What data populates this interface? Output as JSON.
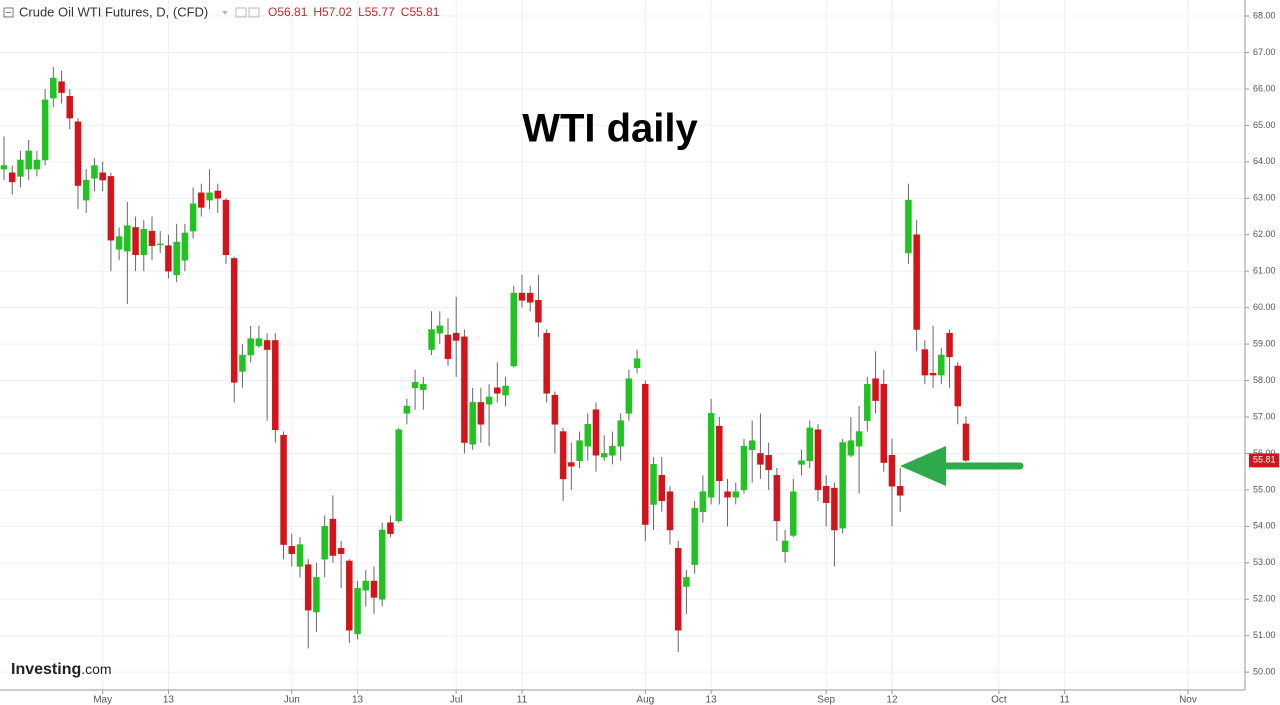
{
  "chart_data": {
    "type": "candlestick",
    "title": "Crude Oil WTI Futures, D, (CFD)",
    "legend": [
      "O56.81",
      "H57.02",
      "L55.77",
      "C55.81"
    ],
    "annotation": "WTI daily",
    "watermark": [
      "Investing",
      ".com"
    ],
    "last_price_label": "55.81",
    "up_color": "#21c321",
    "down_color": "#d4141a",
    "grid": true,
    "categories": [
      null,
      null,
      null,
      null,
      null,
      null,
      null,
      null,
      null,
      null,
      null,
      null,
      "May",
      null,
      null,
      null,
      null,
      null,
      null,
      null,
      "13",
      null,
      null,
      null,
      null,
      null,
      null,
      null,
      null,
      null,
      null,
      null,
      null,
      null,
      null,
      "Jun",
      null,
      null,
      null,
      null,
      null,
      null,
      null,
      "13",
      null,
      null,
      null,
      null,
      null,
      null,
      null,
      null,
      null,
      null,
      null,
      "Jul",
      null,
      null,
      null,
      null,
      null,
      null,
      null,
      "11",
      null,
      null,
      null,
      null,
      null,
      null,
      null,
      null,
      null,
      null,
      null,
      null,
      null,
      null,
      "Aug",
      null,
      null,
      null,
      null,
      null,
      null,
      null,
      "13",
      null,
      null,
      null,
      null,
      null,
      null,
      null,
      null,
      null,
      null,
      null,
      null,
      null,
      "Sep",
      null,
      null,
      null,
      null,
      null,
      null,
      null,
      "12",
      null,
      null,
      null,
      null,
      null,
      null,
      null,
      null,
      null,
      null,
      null,
      null,
      "Oct",
      null,
      null,
      null,
      null,
      null,
      null,
      null,
      "11",
      null,
      null,
      null,
      null,
      null,
      null,
      null,
      null,
      null,
      null,
      null,
      null,
      null,
      null,
      "Nov",
      null,
      null,
      null,
      null
    ],
    "open": [
      63.8,
      63.7,
      63.6,
      63.8,
      63.8,
      64.05,
      65.75,
      66.2,
      65.8,
      65.1,
      62.95,
      63.55,
      63.7,
      63.6,
      61.6,
      61.55,
      62.2,
      61.45,
      62.1,
      61.72,
      61.7,
      60.9,
      61.3,
      62.1,
      63.15,
      62.95,
      63.2,
      62.95,
      61.35,
      58.25,
      58.7,
      58.95,
      59.1,
      59.1,
      56.5,
      53.45,
      52.9,
      52.95,
      51.65,
      53.1,
      54.2,
      53.4,
      53.05,
      51.05,
      52.25,
      52.5,
      52.0,
      54.1,
      54.15,
      57.1,
      57.8,
      57.75,
      58.85,
      59.3,
      59.25,
      59.3,
      59.2,
      56.25,
      57.4,
      57.35,
      57.8,
      57.6,
      58.4,
      60.4,
      60.4,
      60.2,
      59.3,
      57.6,
      56.6,
      55.75,
      55.8,
      56.2,
      57.2,
      55.9,
      55.95,
      56.2,
      57.1,
      58.35,
      57.9,
      54.6,
      55.4,
      54.95,
      53.4,
      52.35,
      52.95,
      54.4,
      54.8,
      56.75,
      54.95,
      54.8,
      55.0,
      56.1,
      56.0,
      55.95,
      55.4,
      53.3,
      53.75,
      55.7,
      55.8,
      56.65,
      55.1,
      55.05,
      53.95,
      55.95,
      56.2,
      56.9,
      58.05,
      57.9,
      55.95,
      55.1,
      61.5,
      62.0,
      58.85,
      58.2,
      58.15,
      59.3,
      58.4,
      56.81,
      null,
      null,
      null,
      null,
      null,
      null,
      null,
      null,
      null,
      null,
      null,
      null,
      null,
      null,
      null,
      null,
      null,
      null,
      null,
      null,
      null,
      null,
      null,
      null,
      null,
      null,
      null,
      null,
      null,
      null,
      null
    ],
    "high": [
      64.7,
      63.9,
      64.3,
      64.6,
      64.3,
      66.0,
      66.6,
      66.5,
      66.0,
      65.2,
      63.8,
      64.1,
      64.0,
      63.7,
      62.2,
      62.9,
      62.5,
      62.4,
      62.5,
      62.1,
      62.0,
      62.3,
      62.3,
      63.3,
      63.4,
      63.8,
      63.4,
      63.0,
      61.4,
      59.0,
      59.5,
      59.5,
      59.3,
      59.3,
      56.6,
      53.8,
      53.7,
      53.1,
      53.0,
      54.3,
      54.85,
      53.6,
      53.1,
      52.5,
      52.8,
      52.9,
      54.1,
      54.3,
      56.7,
      57.5,
      58.3,
      58.1,
      59.9,
      59.9,
      59.7,
      60.3,
      59.4,
      57.8,
      57.8,
      57.9,
      58.5,
      58.1,
      60.6,
      60.9,
      60.6,
      60.9,
      59.4,
      57.7,
      56.7,
      56.3,
      56.6,
      57.1,
      57.4,
      56.5,
      56.6,
      57.1,
      58.3,
      58.85,
      58.0,
      55.9,
      55.9,
      55.1,
      53.6,
      52.8,
      54.7,
      55.4,
      57.5,
      57.0,
      55.3,
      55.2,
      56.4,
      56.9,
      57.1,
      56.3,
      55.6,
      53.9,
      55.3,
      56.1,
      56.9,
      56.8,
      55.4,
      55.2,
      56.4,
      57.0,
      57.3,
      58.1,
      58.8,
      58.3,
      56.4,
      55.6,
      63.4,
      62.4,
      59.1,
      59.5,
      58.9,
      59.4,
      58.5,
      57.02,
      null,
      null,
      null,
      null,
      null,
      null,
      null,
      null,
      null,
      null,
      null,
      null,
      null,
      null,
      null,
      null,
      null,
      null,
      null,
      null,
      null,
      null,
      null,
      null,
      null,
      null,
      null,
      null,
      null,
      null,
      null
    ],
    "low": [
      63.5,
      63.1,
      63.3,
      63.5,
      63.6,
      63.9,
      65.5,
      65.6,
      64.9,
      62.7,
      62.6,
      63.2,
      63.2,
      61.0,
      61.3,
      60.1,
      61.0,
      61.0,
      61.3,
      61.5,
      60.8,
      60.7,
      61.0,
      61.9,
      62.5,
      62.7,
      62.6,
      61.2,
      57.4,
      57.8,
      58.5,
      58.9,
      56.9,
      56.3,
      53.1,
      52.9,
      52.6,
      50.65,
      51.1,
      52.6,
      53.0,
      52.3,
      50.8,
      50.9,
      51.8,
      51.6,
      51.8,
      53.7,
      54.1,
      56.8,
      57.2,
      57.2,
      58.7,
      59.0,
      58.4,
      58.1,
      56.0,
      56.1,
      56.3,
      56.2,
      57.4,
      57.3,
      58.35,
      60.0,
      59.9,
      59.2,
      57.4,
      56.0,
      54.7,
      55.0,
      55.6,
      55.8,
      55.5,
      55.8,
      55.7,
      55.8,
      56.9,
      58.2,
      53.6,
      53.9,
      54.4,
      53.5,
      50.55,
      51.6,
      52.7,
      54.1,
      54.6,
      54.6,
      54.0,
      54.6,
      54.9,
      55.2,
      55.3,
      55.0,
      53.6,
      53.0,
      53.7,
      55.4,
      55.6,
      54.7,
      54.0,
      52.9,
      53.8,
      55.9,
      54.9,
      56.6,
      57.1,
      55.5,
      54.0,
      54.4,
      61.2,
      58.8,
      57.9,
      57.8,
      57.9,
      57.8,
      56.8,
      55.77,
      null,
      null,
      null,
      null,
      null,
      null,
      null,
      null,
      null,
      null,
      null,
      null,
      null,
      null,
      null,
      null,
      null,
      null,
      null,
      null,
      null,
      null,
      null,
      null,
      null,
      null,
      null,
      null,
      null,
      null,
      null
    ],
    "close": [
      63.9,
      63.45,
      64.05,
      64.3,
      64.05,
      65.7,
      66.3,
      65.9,
      65.2,
      63.35,
      63.5,
      63.9,
      63.5,
      61.85,
      61.95,
      62.25,
      61.45,
      62.15,
      61.7,
      61.75,
      61.0,
      61.8,
      62.05,
      62.85,
      62.75,
      63.15,
      63.0,
      61.45,
      57.95,
      58.7,
      59.15,
      59.15,
      58.85,
      56.65,
      53.5,
      53.25,
      53.5,
      51.7,
      52.6,
      54.0,
      53.2,
      53.25,
      51.15,
      52.3,
      52.5,
      52.05,
      53.9,
      53.8,
      56.65,
      57.3,
      57.95,
      57.9,
      59.4,
      59.5,
      58.6,
      59.1,
      56.3,
      57.4,
      56.8,
      57.55,
      57.65,
      57.85,
      60.4,
      60.2,
      60.15,
      59.6,
      57.65,
      56.8,
      55.3,
      55.65,
      56.35,
      56.8,
      55.95,
      56.0,
      56.2,
      56.9,
      58.05,
      58.6,
      54.05,
      55.7,
      54.7,
      53.9,
      51.15,
      52.6,
      54.5,
      54.95,
      57.1,
      55.25,
      54.8,
      54.95,
      56.2,
      56.35,
      55.7,
      55.55,
      54.15,
      53.6,
      54.95,
      55.8,
      56.7,
      55.0,
      54.65,
      53.9,
      56.3,
      56.35,
      56.6,
      57.9,
      57.45,
      55.75,
      55.1,
      54.85,
      62.95,
      59.4,
      58.15,
      58.15,
      58.7,
      58.65,
      57.3,
      55.81,
      null,
      null,
      null,
      null,
      null,
      null,
      null,
      null,
      null,
      null,
      null,
      null,
      null,
      null,
      null,
      null,
      null,
      null,
      null,
      null,
      null,
      null,
      null,
      null,
      null,
      null,
      null,
      null,
      null,
      null,
      null
    ],
    "ylim": [
      49.51,
      68.44
    ],
    "yticks": [
      {
        "value": 50,
        "label": "50.00"
      },
      {
        "value": 51,
        "label": "51.00"
      },
      {
        "value": 52,
        "label": "52.00"
      },
      {
        "value": 53,
        "label": "53.00"
      },
      {
        "value": 54,
        "label": "54.00"
      },
      {
        "value": 55,
        "label": "55.00"
      },
      {
        "value": 56,
        "label": "56.00"
      },
      {
        "value": 57,
        "label": "57.00"
      },
      {
        "value": 58,
        "label": "58.00"
      },
      {
        "value": 59,
        "label": "59.00"
      },
      {
        "value": 60,
        "label": "60.00"
      },
      {
        "value": 61,
        "label": "61.00"
      },
      {
        "value": 62,
        "label": "62.00"
      },
      {
        "value": 63,
        "label": "63.00"
      },
      {
        "value": 64,
        "label": "64.00"
      },
      {
        "value": 65,
        "label": "65.00"
      },
      {
        "value": 66,
        "label": "66.00"
      },
      {
        "value": 67,
        "label": "67.00"
      },
      {
        "value": 68,
        "label": "68.00"
      }
    ]
  }
}
